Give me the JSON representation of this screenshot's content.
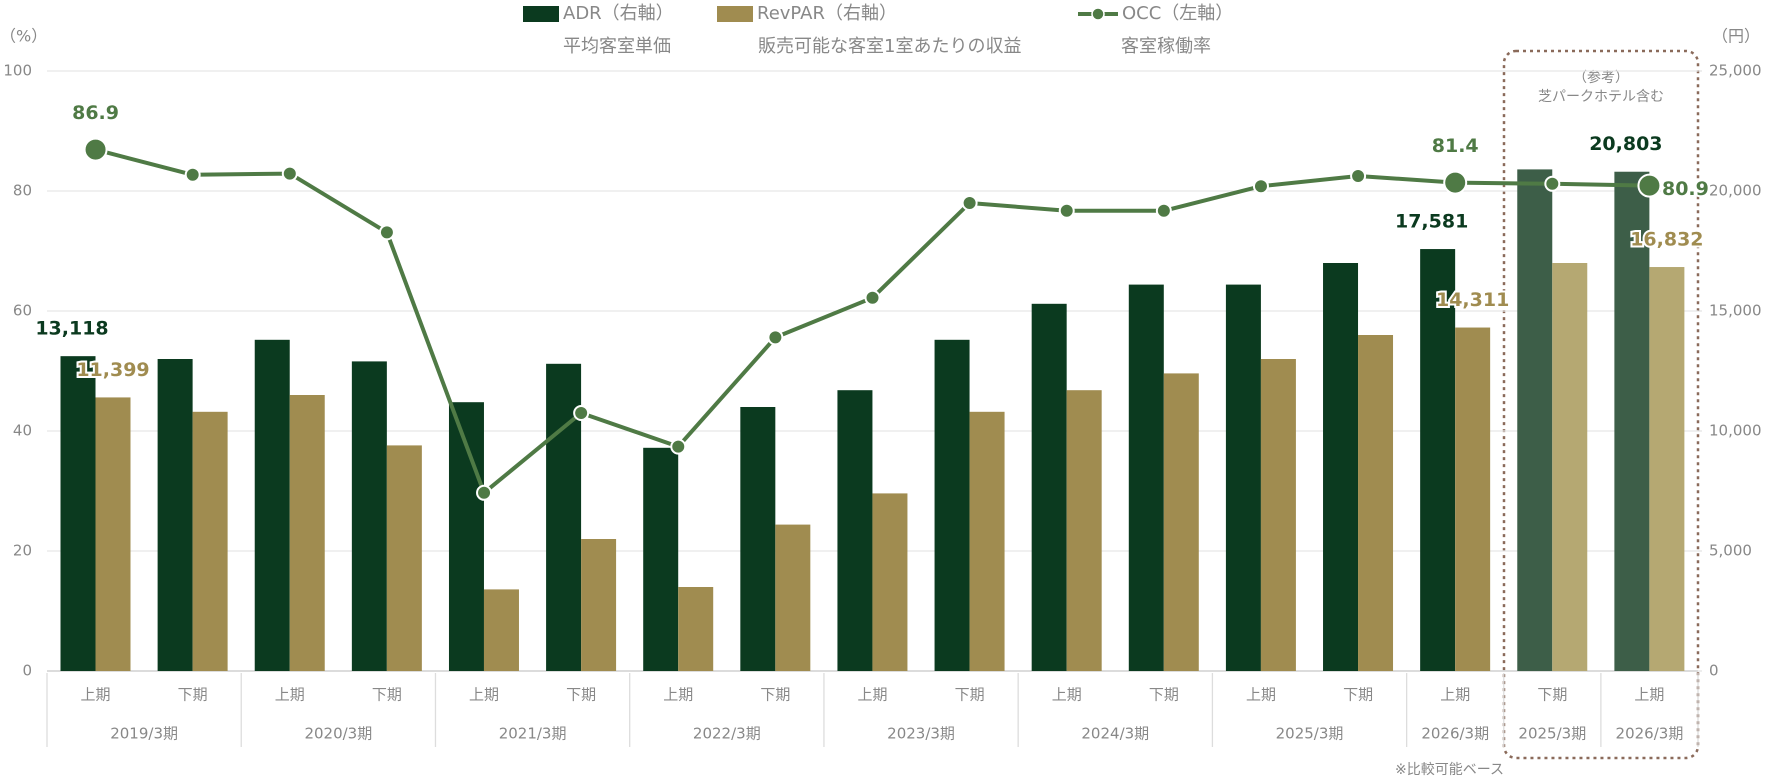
{
  "chart_data": {
    "type": "bar_line",
    "categories": [
      "上期",
      "下期",
      "上期",
      "下期",
      "上期",
      "下期",
      "上期",
      "下期",
      "上期",
      "下期",
      "上期",
      "下期",
      "上期",
      "下期",
      "上期",
      "下期",
      "上期"
    ],
    "category_groups": [
      {
        "label": "2019/3期",
        "span": 2
      },
      {
        "label": "2020/3期",
        "span": 2
      },
      {
        "label": "2021/3期",
        "span": 2
      },
      {
        "label": "2022/3期",
        "span": 2
      },
      {
        "label": "2023/3期",
        "span": 2
      },
      {
        "label": "2024/3期",
        "span": 2
      },
      {
        "label": "2025/3期",
        "span": 2
      },
      {
        "label": "2026/3期",
        "span": 1
      },
      {
        "label": "2025/3期",
        "span": 1,
        "reference": true
      },
      {
        "label": "2026/3期",
        "span": 1,
        "reference": true
      }
    ],
    "series": [
      {
        "name": "ADR（右軸）",
        "description": "平均客室単価",
        "axis": "y2",
        "kind": "bar",
        "color": "#0b3a1f",
        "reference_color": "#3d5e48",
        "values": [
          13118,
          13000,
          13800,
          12900,
          11200,
          12800,
          9300,
          11000,
          11700,
          13800,
          15300,
          16100,
          16100,
          17000,
          17581,
          20900,
          20803
        ],
        "value_labels": [
          "13,118",
          null,
          null,
          null,
          null,
          null,
          null,
          null,
          null,
          null,
          null,
          null,
          null,
          null,
          "17,581",
          null,
          "20,803"
        ]
      },
      {
        "name": "RevPAR（右軸）",
        "description": "販売可能な客室1室あたりの収益",
        "axis": "y2",
        "kind": "bar",
        "color": "#a08c50",
        "reference_color": "#b5a872",
        "values": [
          11399,
          10800,
          11500,
          9400,
          3400,
          5500,
          3500,
          6100,
          7400,
          10800,
          11700,
          12400,
          13000,
          14000,
          14311,
          17000,
          16832
        ],
        "value_labels": [
          "11,399",
          null,
          null,
          null,
          null,
          null,
          null,
          null,
          null,
          null,
          null,
          null,
          null,
          null,
          "14,311",
          null,
          "16,832"
        ]
      },
      {
        "name": "OCC（左軸）",
        "description": "客室稼働率",
        "axis": "y",
        "kind": "line",
        "color": "#4f7a45",
        "values": [
          86.9,
          82.7,
          82.9,
          73.1,
          29.7,
          43.0,
          37.4,
          55.6,
          62.2,
          78.0,
          76.7,
          76.7,
          80.8,
          82.5,
          81.4,
          81.2,
          80.9
        ],
        "value_labels": [
          "86.9",
          null,
          null,
          null,
          null,
          null,
          null,
          null,
          null,
          null,
          null,
          null,
          null,
          null,
          "81.4",
          null,
          "80.9"
        ]
      }
    ],
    "y_unit": "（%）",
    "y2_unit": "（円）",
    "ylim": [
      0,
      100
    ],
    "yticks": [
      0,
      20,
      40,
      60,
      80,
      100
    ],
    "y2lim": [
      0,
      25000
    ],
    "y2ticks": [
      0,
      {
        "value": 5000,
        "label": "5,000"
      },
      {
        "value": 10000,
        "label": "10,000"
      },
      {
        "value": 15000,
        "label": "15,000"
      },
      {
        "value": 20000,
        "label": "20,000"
      },
      {
        "value": 25000,
        "label": "25,000"
      }
    ],
    "grid": true,
    "annotation": [
      "（参考）",
      "芝パークホテル含む"
    ],
    "footnote": "※比較可能ベース"
  }
}
